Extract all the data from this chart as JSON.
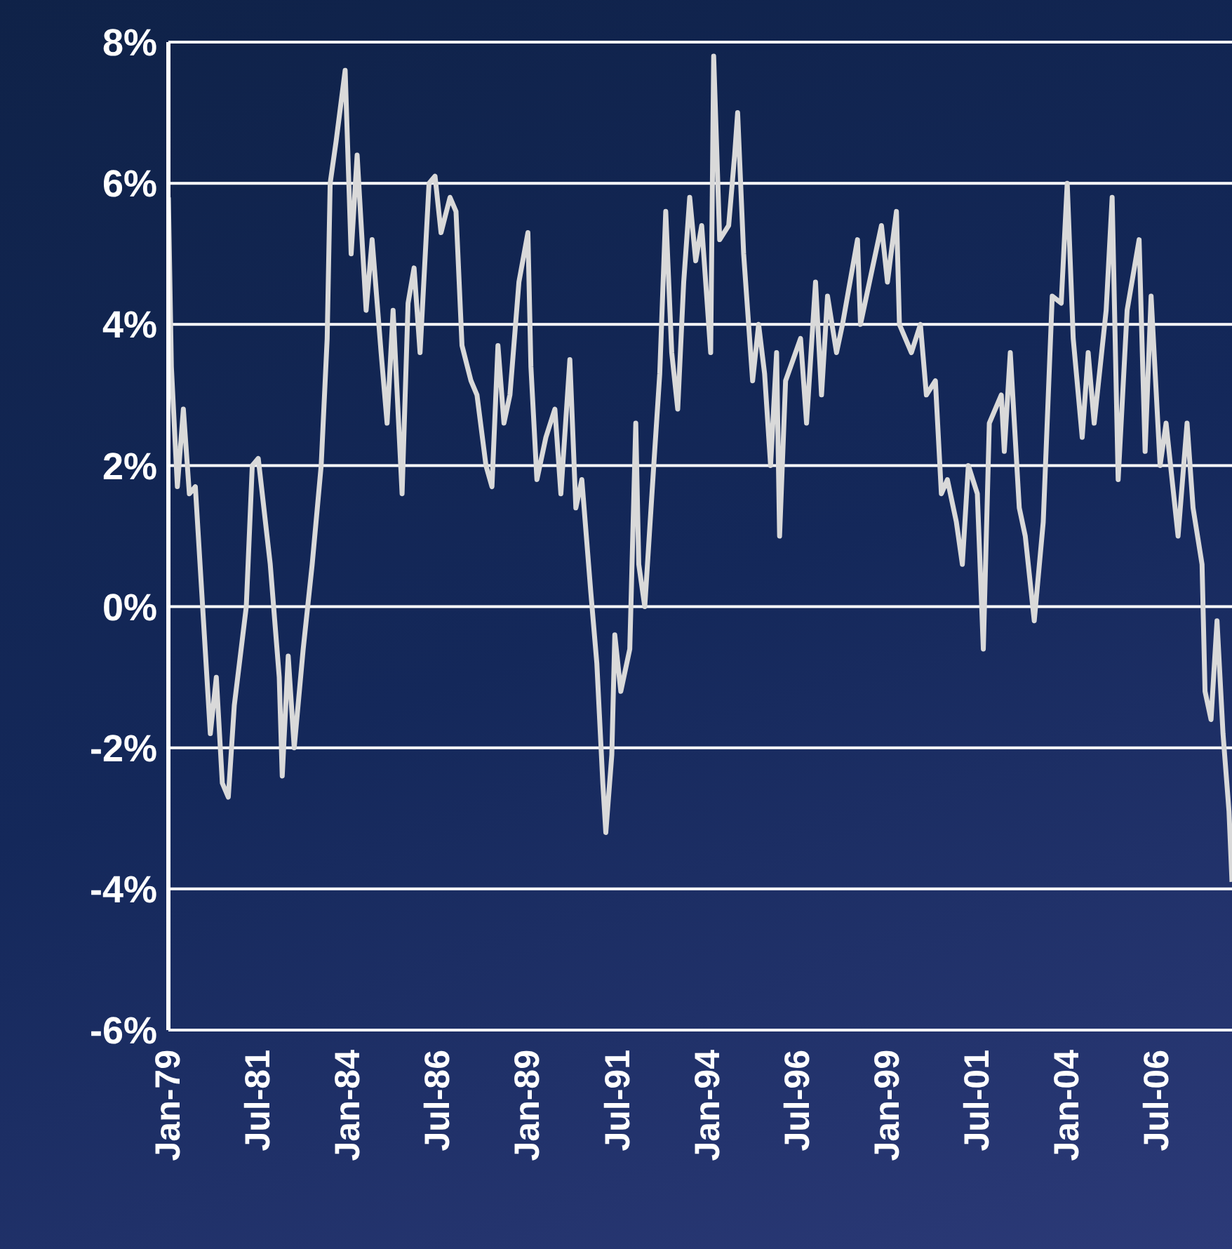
{
  "chart_data": {
    "type": "line",
    "x": [
      "1979-01",
      "1979-02",
      "1979-04",
      "1979-06",
      "1979-08",
      "1979-10",
      "1980-01",
      "1980-03",
      "1980-05",
      "1980-07",
      "1980-09",
      "1980-11",
      "1981-03",
      "1981-05",
      "1981-07",
      "1981-11",
      "1982-02",
      "1982-03",
      "1982-05",
      "1982-07",
      "1982-10",
      "1983-01",
      "1983-04",
      "1983-06",
      "1983-07",
      "1983-09",
      "1983-12",
      "1984-02",
      "1984-04",
      "1984-07",
      "1984-09",
      "1984-12",
      "1985-02",
      "1985-04",
      "1985-07",
      "1985-09",
      "1985-11",
      "1986-01",
      "1986-04",
      "1986-06",
      "1986-08",
      "1986-11",
      "1987-01",
      "1987-03",
      "1987-06",
      "1987-08",
      "1987-11",
      "1988-01",
      "1988-03",
      "1988-05",
      "1988-07",
      "1988-10",
      "1989-01",
      "1989-02",
      "1989-04",
      "1989-07",
      "1989-10",
      "1989-12",
      "1990-03",
      "1990-05",
      "1990-07",
      "1990-10",
      "1990-12",
      "1991-02",
      "1991-03",
      "1991-05",
      "1991-06",
      "1991-08",
      "1991-11",
      "1992-01",
      "1992-02",
      "1992-04",
      "1992-07",
      "1992-09",
      "1992-11",
      "1993-01",
      "1993-03",
      "1993-05",
      "1993-07",
      "1993-09",
      "1993-11",
      "1994-02",
      "1994-03",
      "1994-05",
      "1994-08",
      "1994-10",
      "1994-11",
      "1995-01",
      "1995-04",
      "1995-06",
      "1995-08",
      "1995-10",
      "1995-12",
      "1996-01",
      "1996-03",
      "1996-08",
      "1996-10",
      "1997-01",
      "1997-03",
      "1997-05",
      "1997-08",
      "1997-10",
      "1998-03",
      "1998-04",
      "1998-08",
      "1998-11",
      "1999-01",
      "1999-04",
      "1999-05",
      "1999-09",
      "1999-12",
      "2000-02",
      "2000-05",
      "2000-07",
      "2000-09",
      "2000-12",
      "2001-02",
      "2001-04",
      "2001-07",
      "2001-09",
      "2001-11",
      "2002-03",
      "2002-04",
      "2002-06",
      "2002-09",
      "2002-11",
      "2003-02",
      "2003-05",
      "2003-08",
      "2003-11",
      "2004-01",
      "2004-03",
      "2004-06",
      "2004-08",
      "2004-10",
      "2005-02",
      "2005-04",
      "2005-06",
      "2005-09",
      "2006-01",
      "2006-03",
      "2006-05",
      "2006-08",
      "2006-10",
      "2007-02",
      "2007-05",
      "2007-07",
      "2007-10",
      "2007-11",
      "2008-01",
      "2008-03",
      "2008-05",
      "2008-07",
      "2008-08"
    ],
    "series": [
      {
        "color": "#d9d9d9",
        "values": [
          5.8,
          3.4,
          1.7,
          2.8,
          1.6,
          1.7,
          -0.4,
          -1.8,
          -1.0,
          -2.5,
          -2.7,
          -1.4,
          0,
          2.0,
          2.1,
          0.6,
          -1.0,
          -2.4,
          -0.7,
          -2.0,
          -0.6,
          0.6,
          2.0,
          3.8,
          6.0,
          6.6,
          7.6,
          5.0,
          6.4,
          4.2,
          5.2,
          3.6,
          2.6,
          4.2,
          1.6,
          4.3,
          4.8,
          3.6,
          6.0,
          6.1,
          5.3,
          5.8,
          5.6,
          3.7,
          3.2,
          3.0,
          2.0,
          1.7,
          3.7,
          2.6,
          3.0,
          4.6,
          5.3,
          3.4,
          1.8,
          2.4,
          2.8,
          1.6,
          3.5,
          1.4,
          1.8,
          0.2,
          -0.8,
          -2.5,
          -3.2,
          -2.1,
          -0.4,
          -1.2,
          -0.6,
          2.6,
          0.6,
          0,
          2.0,
          3.3,
          5.6,
          3.6,
          2.8,
          4.6,
          5.8,
          4.9,
          5.4,
          3.6,
          7.8,
          5.2,
          5.4,
          6.4,
          7.0,
          5.0,
          3.2,
          4.0,
          3.3,
          2.0,
          3.6,
          1.0,
          3.2,
          3.8,
          2.6,
          4.6,
          3.0,
          4.4,
          3.6,
          4.0,
          5.2,
          4.0,
          4.8,
          5.4,
          4.6,
          5.6,
          4.0,
          3.6,
          4.0,
          3.0,
          3.2,
          1.6,
          1.8,
          1.2,
          0.6,
          2.0,
          1.6,
          -0.6,
          2.6,
          3.0,
          2.2,
          3.6,
          1.4,
          1.0,
          -0.2,
          1.2,
          4.4,
          4.3,
          6.0,
          3.8,
          2.4,
          3.6,
          2.6,
          4.2,
          5.8,
          1.8,
          4.2,
          5.2,
          2.2,
          4.4,
          2.0,
          2.6,
          1.0,
          2.6,
          1.4,
          0.6,
          -1.2,
          -1.6,
          -0.2,
          -1.8,
          -2.9,
          -3.9
        ]
      }
    ],
    "xlim": [
      "1979-01",
      "2008-08"
    ],
    "xticks": [
      {
        "value": "1979-01",
        "label": "Jan-79"
      },
      {
        "value": "1981-07",
        "label": "Jul-81"
      },
      {
        "value": "1984-01",
        "label": "Jan-84"
      },
      {
        "value": "1986-07",
        "label": "Jul-86"
      },
      {
        "value": "1989-01",
        "label": "Jan-89"
      },
      {
        "value": "1991-07",
        "label": "Jul-91"
      },
      {
        "value": "1994-01",
        "label": "Jan-94"
      },
      {
        "value": "1996-07",
        "label": "Jul-96"
      },
      {
        "value": "1999-01",
        "label": "Jan-99"
      },
      {
        "value": "2001-07",
        "label": "Jul-01"
      },
      {
        "value": "2004-01",
        "label": "Jan-04"
      },
      {
        "value": "2006-07",
        "label": "Jul-06"
      }
    ],
    "ylim": [
      -6,
      8
    ],
    "yticks": [
      {
        "value": -6,
        "label": "-6%"
      },
      {
        "value": -4,
        "label": "-4%"
      },
      {
        "value": -2,
        "label": "-2%"
      },
      {
        "value": 0,
        "label": "0%"
      },
      {
        "value": 2,
        "label": "2%"
      },
      {
        "value": 4,
        "label": "4%"
      },
      {
        "value": 6,
        "label": "6%"
      },
      {
        "value": 8,
        "label": "8%"
      }
    ],
    "grid": "y"
  }
}
